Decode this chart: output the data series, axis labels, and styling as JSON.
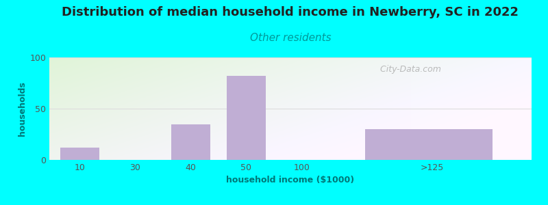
{
  "title": "Distribution of median household income in Newberry, SC in 2022",
  "subtitle": "Other residents",
  "xlabel": "household income ($1000)",
  "ylabel": "households",
  "background_color": "#00FFFF",
  "bar_color": "#c0aed4",
  "categories": [
    "10",
    "30",
    "40",
    "50",
    "100",
    ">125"
  ],
  "bar_lefts": [
    0,
    1,
    2,
    3,
    4,
    5.5
  ],
  "bar_widths": [
    0.7,
    0.7,
    0.7,
    0.7,
    0.7,
    2.3
  ],
  "values": [
    12,
    0,
    35,
    82,
    0,
    30
  ],
  "xtick_positions": [
    0.35,
    1.35,
    2.35,
    3.35,
    4.35,
    6.7
  ],
  "xlim": [
    -0.2,
    8.5
  ],
  "ylim": [
    0,
    100
  ],
  "yticks": [
    0,
    50,
    100
  ],
  "title_fontsize": 13,
  "subtitle_fontsize": 11,
  "subtitle_color": "#009999",
  "axis_label_fontsize": 9,
  "tick_fontsize": 9,
  "watermark_text": " City-Data.com",
  "watermark_color": "#b0b0b0",
  "grid_color": "#dddddd",
  "text_color": "#555555",
  "tick_color": "#555555",
  "ylabel_color": "#007777",
  "xlabel_color": "#007777"
}
